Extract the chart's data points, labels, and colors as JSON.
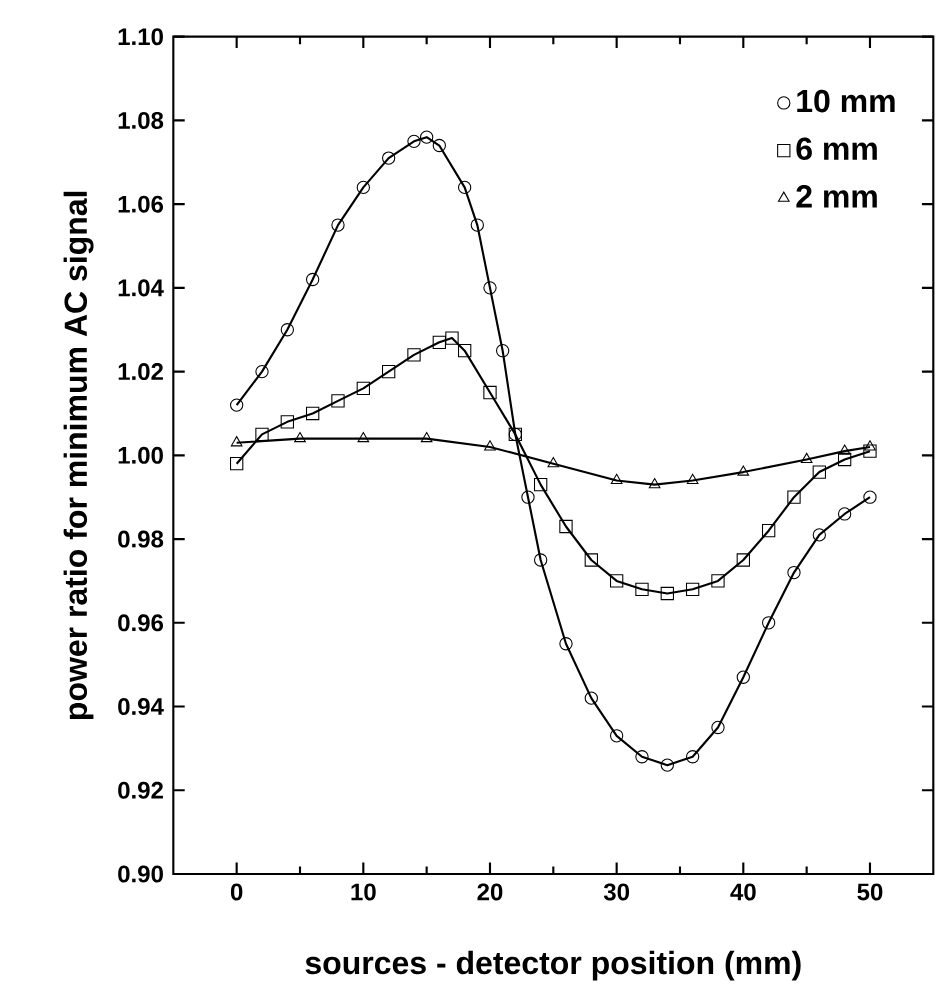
{
  "chart_data": {
    "type": "scatter",
    "xlabel": "sources - detector position (mm)",
    "ylabel": "power ratio for minimum AC signal",
    "xlim": [
      -5,
      55
    ],
    "xticks": [
      0,
      10,
      20,
      30,
      40,
      50
    ],
    "ylim": [
      0.9,
      1.1
    ],
    "yticks": [
      {
        "value": 0.9,
        "label": "0.90"
      },
      {
        "value": 0.92,
        "label": "0.92"
      },
      {
        "value": 0.94,
        "label": "0.94"
      },
      {
        "value": 0.96,
        "label": "0.96"
      },
      {
        "value": 0.98,
        "label": "0.98"
      },
      {
        "value": 1.0,
        "label": "1.00"
      },
      {
        "value": 1.02,
        "label": "1.02"
      },
      {
        "value": 1.04,
        "label": "1.04"
      },
      {
        "value": 1.06,
        "label": "1.06"
      },
      {
        "value": 1.08,
        "label": "1.08"
      },
      {
        "value": 1.1,
        "label": "1.10"
      }
    ],
    "legend": "top right",
    "grid": false,
    "series": [
      {
        "name": "10 mm",
        "color": "#000000",
        "marker": "circle",
        "x": [
          0,
          2,
          4,
          6,
          8,
          10,
          12,
          14,
          15,
          16,
          18,
          19,
          20,
          21,
          22,
          23,
          24,
          26,
          28,
          30,
          32,
          34,
          36,
          38,
          40,
          42,
          44,
          46,
          48,
          50
        ],
        "values": [
          1.012,
          1.02,
          1.03,
          1.042,
          1.055,
          1.064,
          1.071,
          1.075,
          1.076,
          1.074,
          1.064,
          1.055,
          1.04,
          1.025,
          1.005,
          0.99,
          0.975,
          0.955,
          0.942,
          0.933,
          0.928,
          0.926,
          0.928,
          0.935,
          0.947,
          0.96,
          0.972,
          0.981,
          0.986,
          0.99
        ]
      },
      {
        "name": "6 mm",
        "color": "#000000",
        "marker": "square",
        "x": [
          0,
          2,
          4,
          6,
          8,
          10,
          12,
          14,
          16,
          17,
          18,
          20,
          22,
          24,
          26,
          28,
          30,
          32,
          34,
          36,
          38,
          40,
          42,
          44,
          46,
          48,
          50
        ],
        "values": [
          0.998,
          1.005,
          1.008,
          1.01,
          1.013,
          1.016,
          1.02,
          1.024,
          1.027,
          1.028,
          1.025,
          1.015,
          1.005,
          0.993,
          0.983,
          0.975,
          0.97,
          0.968,
          0.967,
          0.968,
          0.97,
          0.975,
          0.982,
          0.99,
          0.996,
          0.999,
          1.001
        ]
      },
      {
        "name": "2 mm",
        "color": "#000000",
        "marker": "triangle",
        "x": [
          0,
          5,
          10,
          15,
          20,
          25,
          30,
          33,
          36,
          40,
          45,
          48,
          50
        ],
        "values": [
          1.003,
          1.004,
          1.004,
          1.004,
          1.002,
          0.998,
          0.994,
          0.993,
          0.994,
          0.996,
          0.999,
          1.001,
          1.002
        ]
      },
      {
        "type": "line",
        "color": "#000000",
        "marker": "none",
        "x": [
          0,
          2,
          4,
          6,
          8,
          10,
          12,
          14,
          15,
          16,
          18,
          19,
          20,
          21,
          22,
          23,
          24,
          26,
          28,
          30,
          32,
          34,
          36,
          38,
          40,
          42,
          44,
          46,
          48,
          50
        ],
        "values": [
          1.012,
          1.02,
          1.03,
          1.042,
          1.055,
          1.064,
          1.071,
          1.075,
          1.076,
          1.074,
          1.064,
          1.055,
          1.04,
          1.025,
          1.005,
          0.99,
          0.975,
          0.955,
          0.942,
          0.933,
          0.928,
          0.926,
          0.928,
          0.935,
          0.947,
          0.96,
          0.972,
          0.981,
          0.986,
          0.99
        ]
      },
      {
        "type": "line",
        "color": "#000000",
        "marker": "none",
        "x": [
          0,
          2,
          4,
          6,
          8,
          10,
          12,
          14,
          16,
          17,
          18,
          20,
          22,
          24,
          26,
          28,
          30,
          32,
          34,
          36,
          38,
          40,
          42,
          44,
          46,
          48,
          50
        ],
        "values": [
          0.998,
          1.005,
          1.008,
          1.01,
          1.013,
          1.016,
          1.02,
          1.024,
          1.027,
          1.028,
          1.025,
          1.015,
          1.005,
          0.993,
          0.983,
          0.975,
          0.97,
          0.968,
          0.967,
          0.968,
          0.97,
          0.975,
          0.982,
          0.99,
          0.996,
          0.999,
          1.001
        ]
      },
      {
        "type": "line",
        "color": "#000000",
        "marker": "none",
        "x": [
          0,
          5,
          10,
          15,
          20,
          25,
          30,
          33,
          36,
          40,
          45,
          48,
          50
        ],
        "values": [
          1.003,
          1.004,
          1.004,
          1.004,
          1.002,
          0.998,
          0.994,
          0.993,
          0.994,
          0.996,
          0.999,
          1.001,
          1.002
        ]
      }
    ]
  }
}
